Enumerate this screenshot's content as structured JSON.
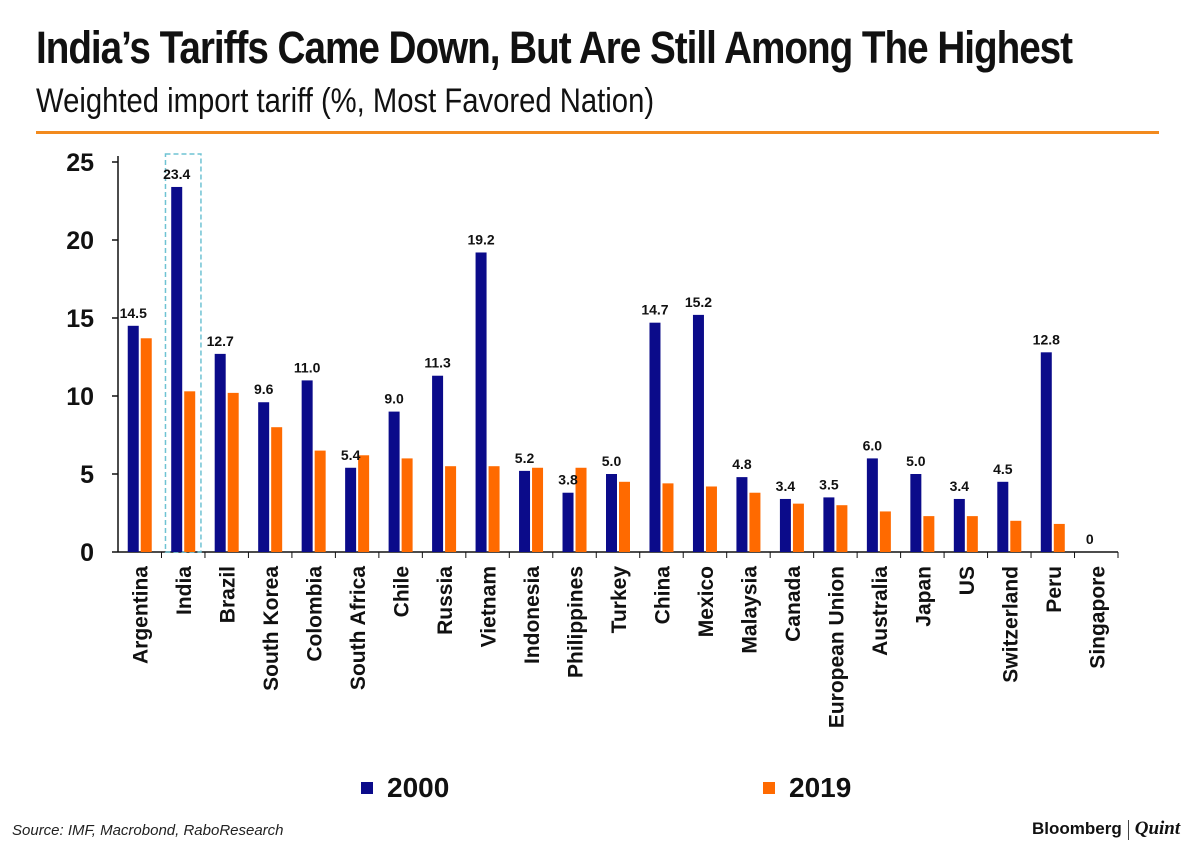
{
  "header": {
    "title": "India’s Tariffs Came Down, But Are Still Among The Highest",
    "subtitle": "Weighted import tariff (%, Most Favored Nation)"
  },
  "colors": {
    "series_2000": "#0b0b8a",
    "series_2019": "#ff6a00",
    "accent_rule": "#f28a1e",
    "highlight_box": "#6fc3d3"
  },
  "chart_data": {
    "type": "bar",
    "title": "India’s Tariffs Came Down, But Are Still Among The Highest",
    "subtitle": "Weighted import tariff (%, Most Favored Nation)",
    "xlabel": "",
    "ylabel": "",
    "ylim": [
      0,
      25
    ],
    "yticks": [
      0,
      5,
      10,
      15,
      20,
      25
    ],
    "grid": false,
    "legend_position": "bottom",
    "highlight_category": "India",
    "categories": [
      "Argentina",
      "India",
      "Brazil",
      "South Korea",
      "Colombia",
      "South Africa",
      "Chile",
      "Russia",
      "Vietnam",
      "Indonesia",
      "Philippines",
      "Turkey",
      "China",
      "Mexico",
      "Malaysia",
      "Canada",
      "European Union",
      "Australia",
      "Japan",
      "US",
      "Switzerland",
      "Peru",
      "Singapore"
    ],
    "series": [
      {
        "name": "2000",
        "values": [
          14.5,
          23.4,
          12.7,
          9.6,
          11.0,
          5.4,
          9.0,
          11.3,
          19.2,
          5.2,
          3.8,
          5.0,
          14.7,
          15.2,
          4.8,
          3.4,
          3.5,
          6.0,
          5.0,
          3.4,
          4.5,
          12.8,
          0
        ],
        "labels": [
          "14.5",
          "23.4",
          "12.7",
          "9.6",
          "11.0",
          "5.4",
          "9.0",
          "11.3",
          "19.2",
          "5.2",
          "3.8",
          "5.0",
          "14.7",
          "15.2",
          "4.8",
          "3.4",
          "3.5",
          "6.0",
          "5.0",
          "3.4",
          "4.5",
          "12.8",
          "0"
        ]
      },
      {
        "name": "2019",
        "values": [
          13.7,
          10.3,
          10.2,
          8.0,
          6.5,
          6.2,
          6.0,
          5.5,
          5.5,
          5.4,
          5.4,
          4.5,
          4.4,
          4.2,
          3.8,
          3.1,
          3.0,
          2.6,
          2.3,
          2.3,
          2.0,
          1.8,
          0
        ]
      }
    ]
  },
  "footer": {
    "source": "Source: IMF, Macrobond, RaboResearch",
    "brand_primary": "Bloomberg",
    "brand_secondary": "Quint"
  }
}
